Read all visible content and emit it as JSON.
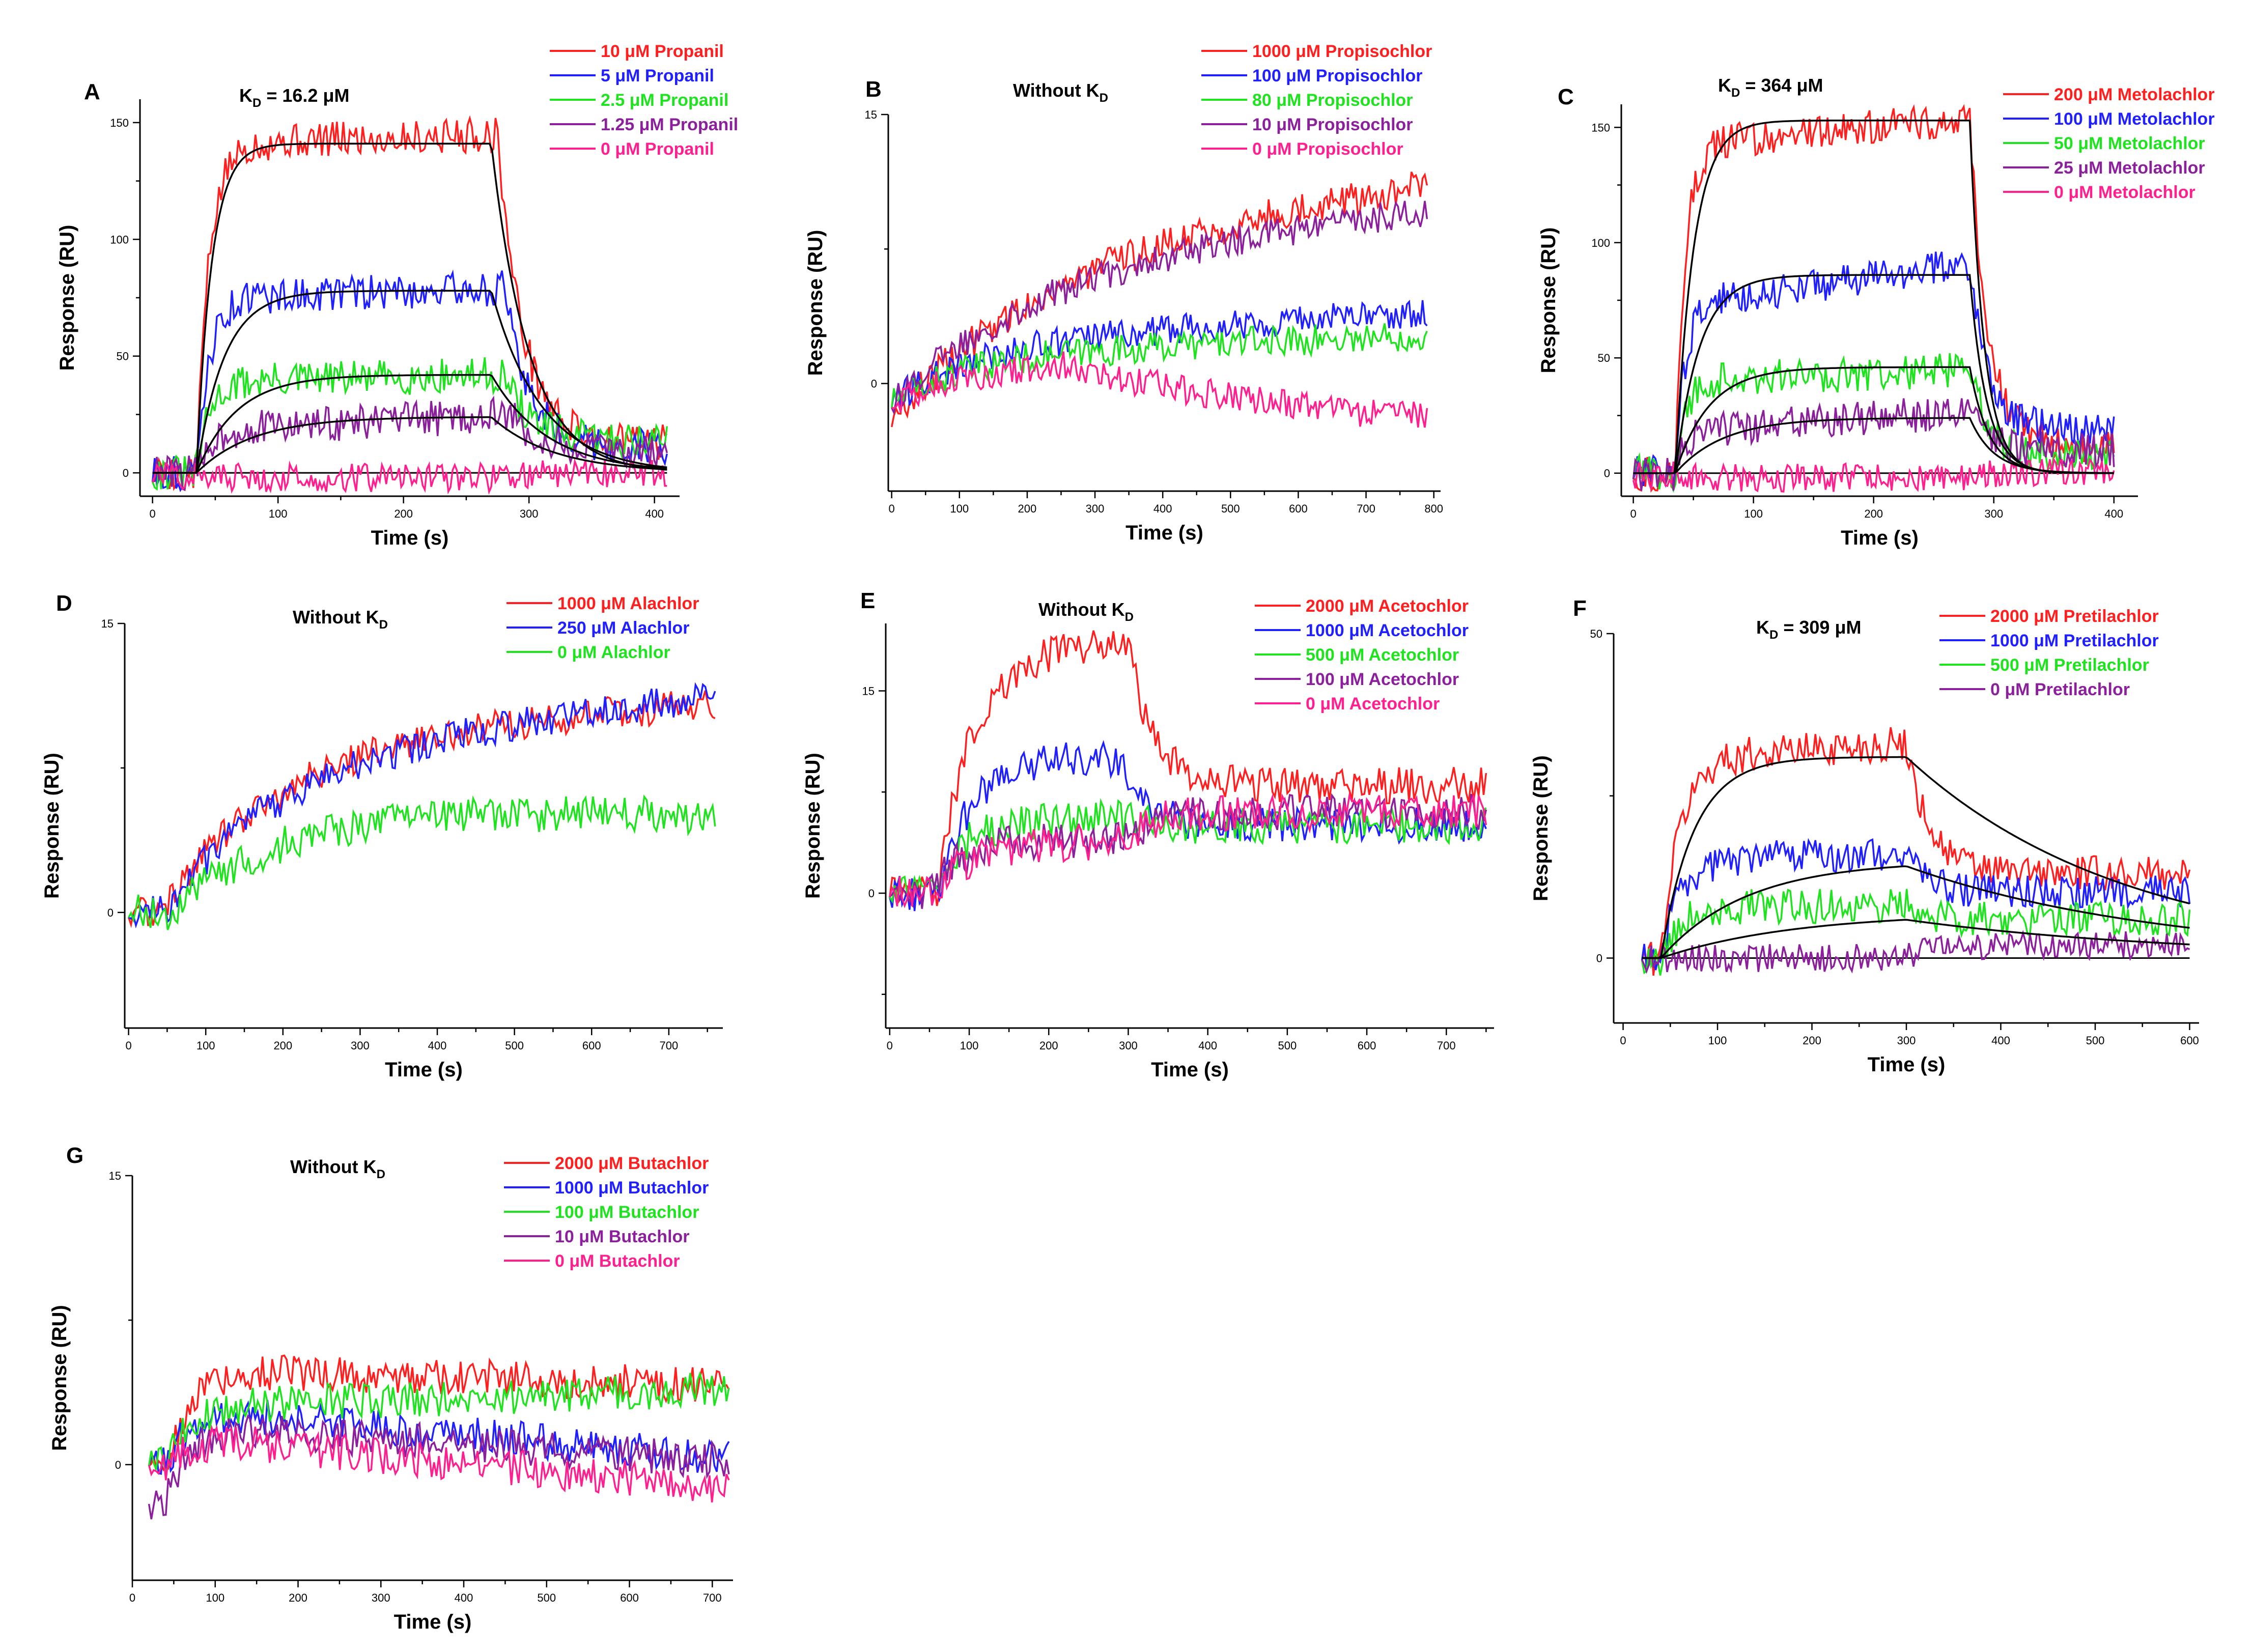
{
  "chart_data": [
    {
      "letter": "A",
      "type": "line",
      "annotation": {
        "main": "K",
        "sub": "D",
        "rest": " = 16.2 μM"
      },
      "xlabel": "Time (s)",
      "ylabel": "Response (RU)",
      "xlim": [
        -10,
        420
      ],
      "ylim": [
        -10,
        160
      ],
      "xticks": [
        0,
        100,
        200,
        300,
        400
      ],
      "yticks": [
        0,
        50,
        100,
        150
      ],
      "x_start": 0,
      "x_end": 410,
      "tau_a": 10,
      "tau_d": 20,
      "series": [
        {
          "name": "10 μM Propanil",
          "color": "#ff1f1f",
          "baseline": 0,
          "plateau": 141,
          "drift": 4,
          "end": 13,
          "inj": 35,
          "stop": 275,
          "noise": 1.0
        },
        {
          "name": "5 μM Propanil",
          "color": "#1f1fff",
          "baseline": 0,
          "plateau": 75,
          "drift": 4,
          "end": 11,
          "inj": 35,
          "stop": 280,
          "noise": 1.0
        },
        {
          "name": "2.5 μM Propanil",
          "color": "#1fe31f",
          "baseline": 0,
          "plateau": 39,
          "drift": 3,
          "end": 14,
          "inj": 35,
          "stop": 280,
          "noise": 1.0
        },
        {
          "name": "1.25 μM Propanil",
          "color": "#8b1f9c",
          "baseline": 0,
          "plateau": 18,
          "drift": 7,
          "end": 9,
          "inj": 35,
          "stop": 285,
          "noise": 1.0
        },
        {
          "name": "0 μM Propanil",
          "color": "#ff1f8f",
          "baseline": -1,
          "plateau": -2,
          "drift": 0,
          "end": 0,
          "inj": 35,
          "stop": 280,
          "noise": 0.8
        }
      ],
      "fits": [
        {
          "inj": 35,
          "stop": 270,
          "plateau": 141,
          "tau_a": 12,
          "tau_d": 30
        },
        {
          "inj": 35,
          "stop": 270,
          "plateau": 78,
          "tau_a": 22,
          "tau_d": 40
        },
        {
          "inj": 35,
          "stop": 270,
          "plateau": 42,
          "tau_a": 32,
          "tau_d": 45
        },
        {
          "inj": 35,
          "stop": 270,
          "plateau": 24,
          "tau_a": 45,
          "tau_d": 50
        }
      ],
      "zero_line": true
    },
    {
      "letter": "B",
      "type": "line",
      "annotation": {
        "main": "Without K",
        "sub": "D",
        "rest": ""
      },
      "xlabel": "Time (s)",
      "ylabel": "Response (RU)",
      "xlim": [
        -5,
        810
      ],
      "ylim": [
        -6,
        15
      ],
      "xticks": [
        0,
        100,
        200,
        300,
        400,
        500,
        600,
        700,
        800
      ],
      "yticks": [
        0,
        15
      ],
      "x_start": 0,
      "x_end": 790,
      "tau_a": 250,
      "tau_d": 400,
      "series": [
        {
          "name": "1000 μM Propisochlor",
          "color": "#ff1f1f",
          "baseline": -2,
          "plateau": 8,
          "drift": 3.5,
          "end": 11,
          "inj": 0,
          "stop": 800,
          "noise": 1.0
        },
        {
          "name": "100 μM Propisochlor",
          "color": "#1f1fff",
          "baseline": -1,
          "plateau": 7,
          "drift": -2,
          "end": 4.5,
          "inj": 0,
          "stop": 290,
          "noise": 0.9
        },
        {
          "name": "80 μM Propisochlor",
          "color": "#1fe31f",
          "baseline": -1,
          "plateau": 6,
          "drift": -2,
          "end": 3,
          "inj": 0,
          "stop": 280,
          "noise": 0.9
        },
        {
          "name": "10 μM Propisochlor",
          "color": "#8b1f9c",
          "baseline": -1,
          "plateau": 7.5,
          "drift": 2.5,
          "end": 9.5,
          "inj": 0,
          "stop": 800,
          "noise": 0.9
        },
        {
          "name": "0 μM Propisochlor",
          "color": "#ff1f8f",
          "baseline": -1,
          "plateau": 5,
          "drift": -2,
          "end": -3,
          "inj": 0,
          "stop": 270,
          "noise": 0.9
        }
      ],
      "fits": [],
      "zero_line": false
    },
    {
      "letter": "C",
      "type": "line",
      "annotation": {
        "main": "K",
        "sub": "D",
        "rest": " = 364 μM"
      },
      "xlabel": "Time (s)",
      "ylabel": "Response (RU)",
      "xlim": [
        -10,
        420
      ],
      "ylim": [
        -10,
        160
      ],
      "xticks": [
        0,
        100,
        200,
        300,
        400
      ],
      "yticks": [
        0,
        50,
        100,
        150
      ],
      "x_start": 0,
      "x_end": 400,
      "tau_a": 8,
      "tau_d": 15,
      "series": [
        {
          "name": "200 μM Metolachlor",
          "color": "#ff1f1f",
          "baseline": 0,
          "plateau": 142,
          "drift": 12,
          "end": 12,
          "inj": 35,
          "stop": 280,
          "noise": 1.0
        },
        {
          "name": "100 μM Metolachlor",
          "color": "#1f1fff",
          "baseline": 0,
          "plateau": 73,
          "drift": 18,
          "end": 19,
          "inj": 35,
          "stop": 280,
          "noise": 1.0
        },
        {
          "name": "50 μM Metolachlor",
          "color": "#1fe31f",
          "baseline": 0,
          "plateau": 40,
          "drift": 5,
          "end": 8,
          "inj": 35,
          "stop": 280,
          "noise": 1.0
        },
        {
          "name": "25 μM Metolachlor",
          "color": "#8b1f9c",
          "baseline": 0,
          "plateau": 18,
          "drift": 9,
          "end": 10,
          "inj": 35,
          "stop": 285,
          "noise": 1.0
        },
        {
          "name": "0 μM Metolachlor",
          "color": "#ff1f8f",
          "baseline": -1,
          "plateau": -2,
          "drift": 0,
          "end": 0,
          "inj": 35,
          "stop": 280,
          "noise": 0.8
        }
      ],
      "fits": [
        {
          "inj": 35,
          "stop": 280,
          "plateau": 153,
          "tau_a": 15,
          "tau_d": 12
        },
        {
          "inj": 35,
          "stop": 280,
          "plateau": 86,
          "tau_a": 20,
          "tau_d": 14
        },
        {
          "inj": 35,
          "stop": 280,
          "plateau": 46,
          "tau_a": 28,
          "tau_d": 16
        },
        {
          "inj": 35,
          "stop": 280,
          "plateau": 24,
          "tau_a": 40,
          "tau_d": 20
        }
      ],
      "zero_line": true
    },
    {
      "letter": "D",
      "type": "line",
      "annotation": {
        "main": "Without K",
        "sub": "D",
        "rest": ""
      },
      "xlabel": "Time (s)",
      "ylabel": "Response (RU)",
      "xlim": [
        -5,
        770
      ],
      "ylim": [
        -6,
        15
      ],
      "xticks": [
        0,
        100,
        200,
        300,
        400,
        500,
        600,
        700
      ],
      "yticks": [
        0,
        15
      ],
      "x_start": 0,
      "x_end": 760,
      "tau_a": 150,
      "tau_d": 200,
      "series": [
        {
          "name": "1000 μM Alachlor",
          "color": "#ff1f1f",
          "baseline": 0,
          "plateau": 9,
          "drift": 2,
          "end": 11,
          "inj": 40,
          "stop": 800,
          "noise": 0.9
        },
        {
          "name": "250 μM Alachlor",
          "color": "#1f1fff",
          "baseline": 0,
          "plateau": 8,
          "drift": 3.5,
          "end": 11.5,
          "inj": 45,
          "stop": 800,
          "noise": 0.9
        },
        {
          "name": "0 μM Alachlor",
          "color": "#1fe31f",
          "baseline": 0,
          "plateau": 6,
          "drift": -1,
          "end": 5,
          "inj": 55,
          "stop": 800,
          "noise": 1.0
        }
      ],
      "fits": [],
      "zero_line": false
    },
    {
      "letter": "E",
      "type": "line",
      "annotation": {
        "main": "Without K",
        "sub": "D",
        "rest": ""
      },
      "xlabel": "Time (s)",
      "ylabel": "Response (RU)",
      "xlim": [
        -5,
        760
      ],
      "ylim": [
        -10,
        20
      ],
      "xticks": [
        0,
        100,
        200,
        300,
        400,
        500,
        600,
        700
      ],
      "yticks": [
        0,
        15
      ],
      "x_start": 0,
      "x_end": 750,
      "tau_a": 40,
      "tau_d": 30,
      "series": [
        {
          "name": "2000 μM Acetochlor",
          "color": "#ff1f1f",
          "baseline": 0,
          "plateau": 17,
          "drift": 2,
          "end": 8,
          "inj": 60,
          "stop": 300,
          "noise": 1.0
        },
        {
          "name": "1000 μM Acetochlor",
          "color": "#1f1fff",
          "baseline": 0,
          "plateau": 10,
          "drift": 0,
          "end": 5,
          "inj": 60,
          "stop": 290,
          "noise": 1.0
        },
        {
          "name": "500 μM Acetochlor",
          "color": "#1fe31f",
          "baseline": 0,
          "plateau": 5.5,
          "drift": 0,
          "end": 5,
          "inj": 50,
          "stop": 300,
          "noise": 1.0
        },
        {
          "name": "100 μM Acetochlor",
          "color": "#8b1f9c",
          "baseline": 0,
          "plateau": 4,
          "drift": 0,
          "end": 6,
          "inj": 50,
          "stop": 300,
          "noise": 1.0
        },
        {
          "name": "0 μM Acetochlor",
          "color": "#ff1f8f",
          "baseline": 0,
          "plateau": 3,
          "drift": 1,
          "end": 6,
          "inj": 50,
          "stop": 300,
          "noise": 1.0
        }
      ],
      "fits": [],
      "zero_line": false
    },
    {
      "letter": "F",
      "type": "line",
      "annotation": {
        "main": "K",
        "sub": "D",
        "rest": " = 309 μM"
      },
      "xlabel": "Time (s)",
      "ylabel": "Response (RU)",
      "xlim": [
        -10,
        610
      ],
      "ylim": [
        -10,
        50
      ],
      "xticks": [
        0,
        100,
        200,
        300,
        400,
        500,
        600
      ],
      "yticks": [
        0,
        50
      ],
      "x_start": 20,
      "x_end": 600,
      "tau_a": 20,
      "tau_d": 25,
      "series": [
        {
          "name": "2000 μM Pretilachlor",
          "color": "#ff1f1f",
          "baseline": 0,
          "plateau": 31,
          "drift": 2,
          "end": 13,
          "inj": 40,
          "stop": 300,
          "noise": 1.0
        },
        {
          "name": "1000 μM Pretilachlor",
          "color": "#1f1fff",
          "baseline": 0,
          "plateau": 15,
          "drift": 1,
          "end": 10,
          "inj": 40,
          "stop": 300,
          "noise": 1.0
        },
        {
          "name": "500 μM Pretilachlor",
          "color": "#1fe31f",
          "baseline": 0,
          "plateau": 8,
          "drift": 0,
          "end": 6,
          "inj": 40,
          "stop": 300,
          "noise": 1.0
        },
        {
          "name": "0 μM Pretilachlor",
          "color": "#8b1f9c",
          "baseline": 0,
          "plateau": 0,
          "drift": 0,
          "end": 2,
          "inj": 40,
          "stop": 300,
          "noise": 0.8
        }
      ],
      "fits": [
        {
          "inj": 40,
          "stop": 300,
          "plateau": 31,
          "tau_a": 35,
          "tau_d": 230
        },
        {
          "inj": 40,
          "stop": 300,
          "plateau": 15,
          "tau_a": 90,
          "tau_d": 270
        },
        {
          "inj": 40,
          "stop": 300,
          "plateau": 7,
          "tau_a": 140,
          "tau_d": 290
        }
      ],
      "zero_line": true
    },
    {
      "letter": "G",
      "type": "line",
      "annotation": {
        "main": "Without K",
        "sub": "D",
        "rest": ""
      },
      "xlabel": "Time (s)",
      "ylabel": "Response (RU)",
      "xlim": [
        0,
        725
      ],
      "ylim": [
        -6,
        15
      ],
      "xticks": [
        0,
        100,
        200,
        300,
        400,
        500,
        600,
        700
      ],
      "yticks": [
        0,
        15
      ],
      "x_start": 20,
      "x_end": 720,
      "tau_a": 30,
      "tau_d": 200,
      "series": [
        {
          "name": "2000 μM Butachlor",
          "color": "#ff1f1f",
          "baseline": 0,
          "plateau": 5,
          "drift": -1,
          "end": 3,
          "inj": 40,
          "stop": 800,
          "noise": 1.0
        },
        {
          "name": "1000 μM Butachlor",
          "color": "#1f1fff",
          "baseline": 0,
          "plateau": 3,
          "drift": -3,
          "end": 0,
          "inj": 40,
          "stop": 800,
          "noise": 1.0
        },
        {
          "name": "100 μM Butachlor",
          "color": "#1fe31f",
          "baseline": 0,
          "plateau": 3,
          "drift": 1,
          "end": 4,
          "inj": 40,
          "stop": 800,
          "noise": 1.0
        },
        {
          "name": "10 μM Butachlor",
          "color": "#8b1f9c",
          "baseline": -2,
          "plateau": 2,
          "drift": -2,
          "end": -1,
          "inj": 40,
          "stop": 800,
          "noise": 1.0
        },
        {
          "name": "0 μM Butachlor",
          "color": "#ff1f8f",
          "baseline": 0,
          "plateau": 1.5,
          "drift": -3,
          "end": -2,
          "inj": 40,
          "stop": 800,
          "noise": 1.0
        }
      ],
      "fits": [],
      "zero_line": false
    }
  ]
}
